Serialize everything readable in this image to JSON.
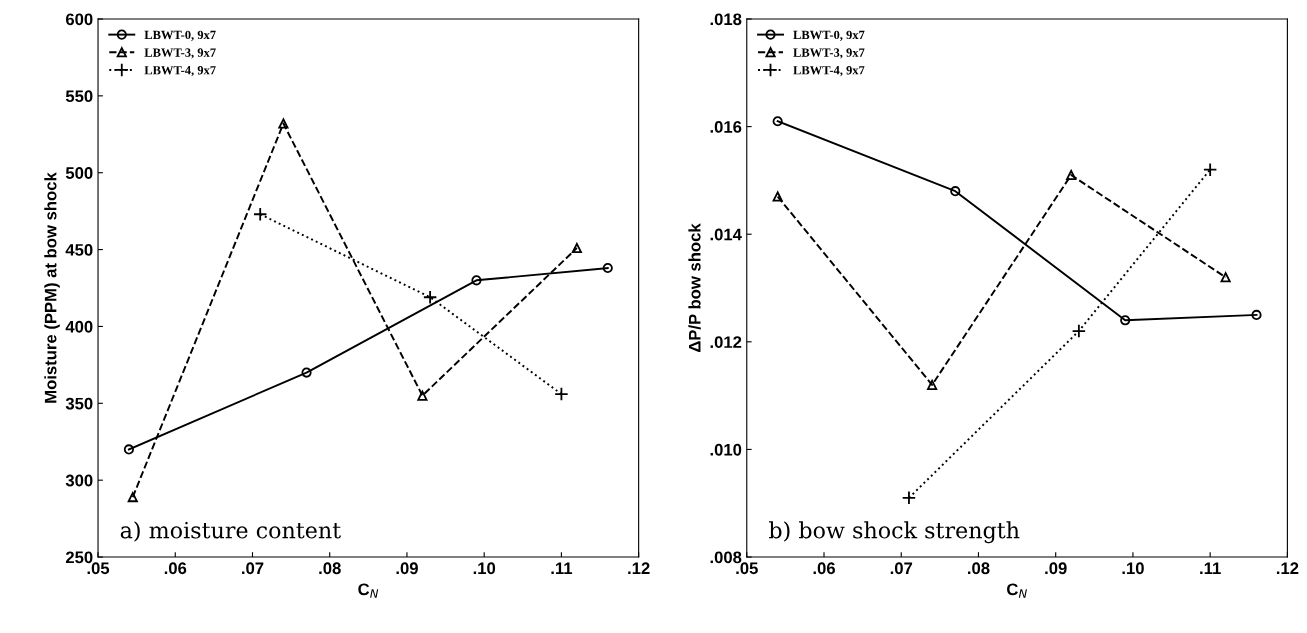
{
  "chart_data": [
    {
      "type": "line",
      "xlabel": "C$_{N}$",
      "ylabel": "Moisture (PPM) at bow shock",
      "annotations": [
        "a) moisture content"
      ],
      "legend": "top left",
      "grid": false,
      "xlim": [
        0.05,
        0.12
      ],
      "xticks": [
        {
          "value": 0.05,
          "label": ".05"
        },
        {
          "value": 0.06,
          "label": ".06"
        },
        {
          "value": 0.07,
          "label": ".07"
        },
        {
          "value": 0.08,
          "label": ".08"
        },
        {
          "value": 0.09,
          "label": ".09"
        },
        {
          "value": 0.1,
          "label": ".10"
        },
        {
          "value": 0.11,
          "label": ".11"
        },
        {
          "value": 0.12,
          "label": ".12"
        }
      ],
      "ylim": [
        250,
        600
      ],
      "yticks": [
        250,
        300,
        350,
        400,
        450,
        500,
        550,
        600
      ],
      "series": [
        {
          "name": "LBWT-0, 9x7",
          "color": "#000000",
          "marker": "circle",
          "line_style": "solid",
          "x": [
            0.054,
            0.077,
            0.099,
            0.116
          ],
          "values": [
            320,
            370,
            430,
            438
          ]
        },
        {
          "name": "LBWT-3, 9x7",
          "color": "#000000",
          "marker": "triangle",
          "line_style": "dashed",
          "x": [
            0.0545,
            0.074,
            0.092,
            0.112
          ],
          "values": [
            289,
            532,
            355,
            451
          ]
        },
        {
          "name": "LBWT-4, 9x7",
          "color": "#000000",
          "marker": "cross",
          "line_style": "dotted",
          "x": [
            0.071,
            0.093,
            0.11
          ],
          "values": [
            473,
            419,
            356
          ]
        }
      ]
    },
    {
      "type": "line",
      "xlabel": "C$_{N}$",
      "ylabel": "ΔP/P bow shock",
      "annotations": [
        "b) bow shock strength"
      ],
      "legend": "top left",
      "grid": false,
      "xlim": [
        0.05,
        0.12
      ],
      "xticks": [
        {
          "value": 0.05,
          "label": ".05"
        },
        {
          "value": 0.06,
          "label": ".06"
        },
        {
          "value": 0.07,
          "label": ".07"
        },
        {
          "value": 0.08,
          "label": ".08"
        },
        {
          "value": 0.09,
          "label": ".09"
        },
        {
          "value": 0.1,
          "label": ".10"
        },
        {
          "value": 0.11,
          "label": ".11"
        },
        {
          "value": 0.12,
          "label": ".12"
        }
      ],
      "ylim": [
        0.008,
        0.018
      ],
      "yticks": [
        {
          "value": 0.008,
          "label": ".008"
        },
        {
          "value": 0.01,
          "label": ".010"
        },
        {
          "value": 0.012,
          "label": ".012"
        },
        {
          "value": 0.014,
          "label": ".014"
        },
        {
          "value": 0.016,
          "label": ".016"
        },
        {
          "value": 0.018,
          "label": ".018"
        }
      ],
      "series": [
        {
          "name": "LBWT-0, 9x7",
          "color": "#000000",
          "marker": "circle",
          "line_style": "solid",
          "x": [
            0.054,
            0.077,
            0.099,
            0.116
          ],
          "values": [
            0.0161,
            0.0148,
            0.0124,
            0.0125
          ]
        },
        {
          "name": "LBWT-3, 9x7",
          "color": "#000000",
          "marker": "triangle",
          "line_style": "dashed",
          "x": [
            0.054,
            0.074,
            0.092,
            0.112
          ],
          "values": [
            0.0147,
            0.0112,
            0.0151,
            0.0132
          ]
        },
        {
          "name": "LBWT-4, 9x7",
          "color": "#000000",
          "marker": "cross",
          "line_style": "dotted",
          "x": [
            0.071,
            0.093,
            0.11
          ],
          "values": [
            0.0091,
            0.0122,
            0.0152
          ]
        }
      ]
    }
  ]
}
